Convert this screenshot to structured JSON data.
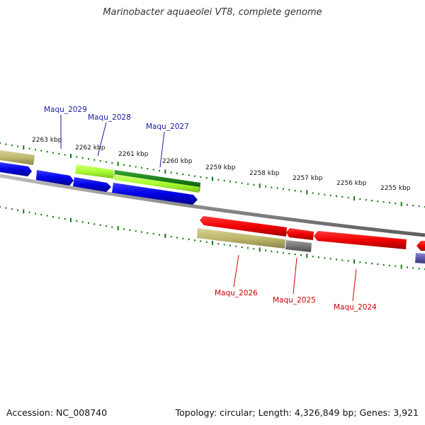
{
  "title": "Marinobacter aquaeolei VT8, complete genome",
  "footer": {
    "accession": "Accession: NC_008740",
    "summary": "Topology: circular; Length: 4,326,849 bp; Genes: 3,921"
  },
  "colors": {
    "forward_label": "#1a1aa6",
    "reverse_label": "#cc0000",
    "tick": "#1a7a1a",
    "backbone": "#8c8c8c"
  },
  "ticks": [
    {
      "label": "2263 kbp"
    },
    {
      "label": "2262 kbp"
    },
    {
      "label": "2261 kbp"
    },
    {
      "label": "2260 kbp"
    },
    {
      "label": "2259 kbp"
    },
    {
      "label": "2258 kbp"
    },
    {
      "label": "2257 kbp"
    },
    {
      "label": "2256 kbp"
    },
    {
      "label": "2255 kbp"
    }
  ],
  "genes": [
    {
      "name": "Maqu_2029",
      "strand": "forward"
    },
    {
      "name": "Maqu_2028",
      "strand": "forward"
    },
    {
      "name": "Maqu_2027",
      "strand": "forward"
    },
    {
      "name": "Maqu_2026",
      "strand": "reverse"
    },
    {
      "name": "Maqu_2025",
      "strand": "reverse"
    },
    {
      "name": "Maqu_2024",
      "strand": "reverse"
    }
  ]
}
